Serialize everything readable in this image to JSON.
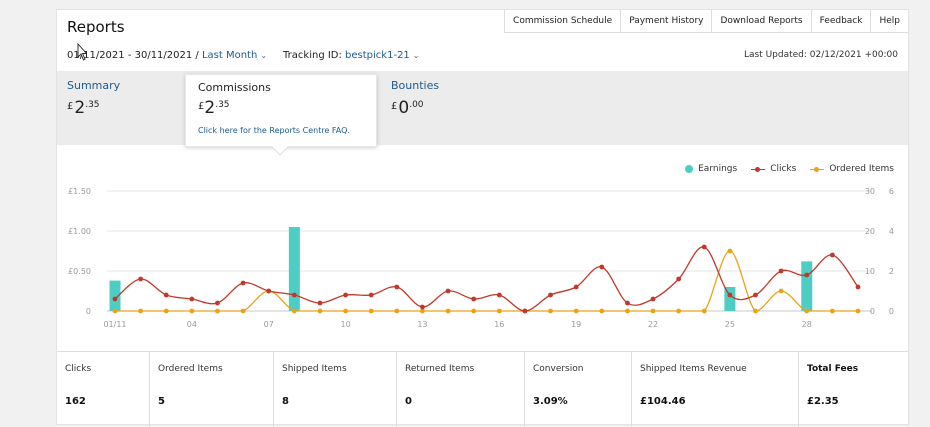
{
  "header": {
    "title": "Reports",
    "nav": [
      "Commission Schedule",
      "Payment History",
      "Download Reports",
      "Feedback",
      "Help"
    ],
    "date_range": "01/11/2021 - 30/11/2021 / ",
    "period_link": "Last Month",
    "tracking_label": "Tracking ID: ",
    "tracking_id": "bestpick1-21",
    "last_updated": "Last Updated: 02/12/2021 +00:00"
  },
  "tabs": {
    "summary": {
      "label": "Summary",
      "currency": "£",
      "main": "2",
      "decimals": ".35"
    },
    "commissions": {
      "label": "Commissions",
      "currency": "£",
      "main": "2",
      "decimals": ".35",
      "faq": "Click here for the Reports Centre FAQ."
    },
    "bounties": {
      "label": "Bounties",
      "currency": "£",
      "main": "0",
      "decimals": ".00"
    }
  },
  "legend": [
    "Earnings",
    "Clicks",
    "Ordered Items"
  ],
  "colors": {
    "earnings": "#4ecdc4",
    "clicks": "#c0392b",
    "ordered": "#e8a317",
    "link": "#1d5a8e"
  },
  "chart_data": {
    "type": "bar",
    "x": [
      "01/11",
      "02/11",
      "03/11",
      "04/11",
      "05/11",
      "06/11",
      "07/11",
      "08/11",
      "09/11",
      "10/11",
      "11/11",
      "12/11",
      "13/11",
      "14/11",
      "15/11",
      "16/11",
      "17/11",
      "18/11",
      "19/11",
      "20/11",
      "21/11",
      "22/11",
      "23/11",
      "24/11",
      "25/11",
      "26/11",
      "27/11",
      "28/11",
      "29/11",
      "30/11"
    ],
    "x_tick_labels": [
      "01/11",
      "04",
      "07",
      "10",
      "13",
      "16",
      "19",
      "22",
      "25",
      "28"
    ],
    "y_left_ticks": [
      "£1.50",
      "£1.00",
      "£0.50",
      "0"
    ],
    "y_right_clicks_ticks": [
      "30",
      "20",
      "10",
      "0"
    ],
    "y_right_ordered_ticks": [
      "6",
      "4",
      "2",
      "0"
    ],
    "ylim_earnings": [
      0,
      1.5
    ],
    "ylim_clicks": [
      0,
      30
    ],
    "ylim_ordered": [
      0,
      6
    ],
    "series": [
      {
        "name": "Earnings",
        "type": "bar",
        "values": [
          0.38,
          0,
          0,
          0,
          0,
          0,
          0,
          1.05,
          0,
          0,
          0,
          0,
          0,
          0,
          0,
          0,
          0,
          0,
          0,
          0,
          0,
          0,
          0,
          0,
          0.3,
          0,
          0,
          0.62,
          0,
          0
        ]
      },
      {
        "name": "Clicks",
        "type": "line",
        "values": [
          3,
          8,
          4,
          3,
          2,
          7,
          5,
          4,
          2,
          4,
          4,
          6,
          1,
          5,
          3,
          4,
          0,
          4,
          6,
          11,
          2,
          3,
          8,
          16,
          4,
          4,
          10,
          9,
          14,
          6
        ]
      },
      {
        "name": "Ordered Items",
        "type": "line",
        "values": [
          0,
          0,
          0,
          0,
          0,
          0,
          1,
          0,
          0,
          0,
          0,
          0,
          0,
          0,
          0,
          0,
          0,
          0,
          0,
          0,
          0,
          0,
          0,
          0,
          3,
          0,
          1,
          0,
          0,
          0
        ]
      }
    ]
  },
  "stats": [
    {
      "label": "Clicks",
      "value": "162"
    },
    {
      "label": "Ordered Items",
      "value": "5"
    },
    {
      "label": "Shipped Items",
      "value": "8"
    },
    {
      "label": "Returned Items",
      "value": "0"
    },
    {
      "label": "Conversion",
      "value": "3.09%"
    },
    {
      "label": "Shipped Items Revenue",
      "value": "£104.46"
    },
    {
      "label": "Total Fees",
      "value": "£2.35"
    }
  ]
}
